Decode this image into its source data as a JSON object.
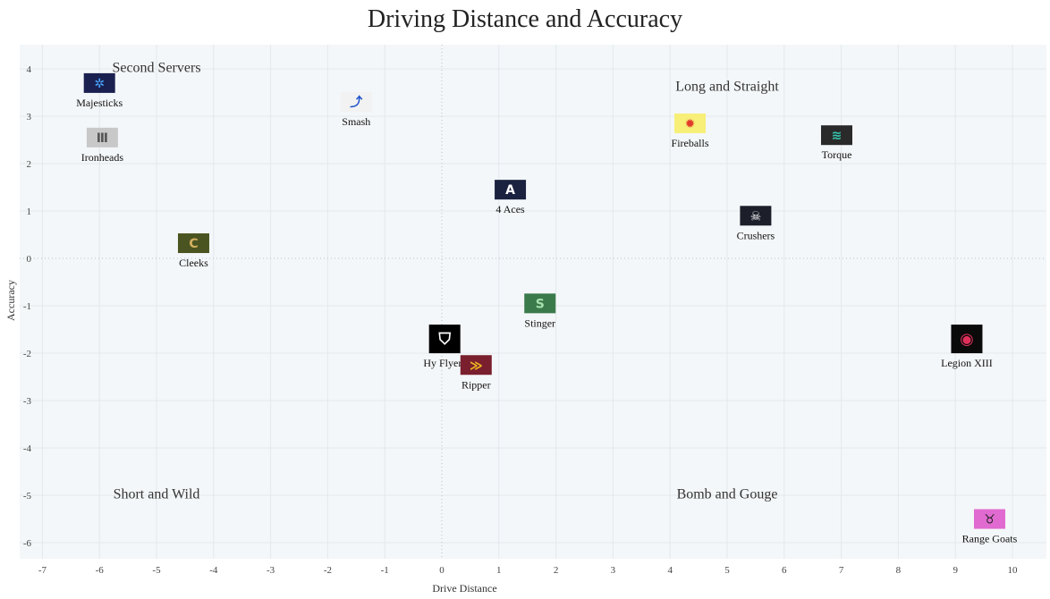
{
  "chart_data": {
    "type": "scatter",
    "title": "Driving Distance and Accuracy",
    "xlabel": "Drive Distance",
    "ylabel": "Accuracy",
    "xlim": [
      -7,
      10.6
    ],
    "ylim": [
      -6.3,
      4.3
    ],
    "xticks": [
      -7,
      -6,
      -5,
      -4,
      -3,
      -2,
      -1,
      0,
      1,
      2,
      3,
      4,
      5,
      6,
      7,
      8,
      9,
      10
    ],
    "yticks": [
      4,
      3,
      2,
      1,
      0,
      -1,
      -2,
      -3,
      -4,
      -5,
      -6
    ],
    "grid": true,
    "quadrant_labels": [
      {
        "text": "Second Servers",
        "x": -5.0,
        "y": 4.05
      },
      {
        "text": "Long and Straight",
        "x": 5.0,
        "y": 3.65
      },
      {
        "text": "Short and Wild",
        "x": -5.0,
        "y": -4.95
      },
      {
        "text": "Bomb and Gouge",
        "x": 5.0,
        "y": -4.95
      }
    ],
    "points": [
      {
        "name": "Majesticks",
        "x": -6.0,
        "y": 3.7,
        "color": "#1a2150",
        "icon": "compass-star-icon",
        "glyph": "✲",
        "glyph_color": "#4aa3ff"
      },
      {
        "name": "Ironheads",
        "x": -5.95,
        "y": 2.55,
        "color": "#c8c8c8",
        "icon": "ironheads-logo-icon",
        "glyph": "Ⅲ",
        "glyph_color": "#555555"
      },
      {
        "name": "Smash",
        "x": -1.5,
        "y": 3.3,
        "color": "#f2f2f2",
        "icon": "smash-logo-icon",
        "glyph": "⤴",
        "glyph_color": "#2255cc"
      },
      {
        "name": "Fireballs",
        "x": 4.35,
        "y": 2.85,
        "color": "#f7ef78",
        "icon": "fireball-icon",
        "glyph": "✹",
        "glyph_color": "#e23a2a"
      },
      {
        "name": "Torque",
        "x": 6.92,
        "y": 2.6,
        "color": "#2a2a2a",
        "icon": "torque-logo-icon",
        "glyph": "≋",
        "glyph_color": "#33c9b0"
      },
      {
        "name": "4 Aces",
        "x": 1.2,
        "y": 1.45,
        "color": "#1b2240",
        "icon": "aces-logo-icon",
        "glyph": "A",
        "glyph_color": "#ffffff"
      },
      {
        "name": "Crushers",
        "x": 5.5,
        "y": 0.9,
        "color": "#1c1f2a",
        "icon": "skull-icon",
        "glyph": "☠",
        "glyph_color": "#ffffff"
      },
      {
        "name": "Cleeks",
        "x": -4.35,
        "y": 0.32,
        "color": "#4a5420",
        "icon": "cleeks-logo-icon",
        "glyph": "C",
        "glyph_color": "#d4b060"
      },
      {
        "name": "Stinger",
        "x": 1.72,
        "y": -0.95,
        "color": "#3b7a4a",
        "icon": "stinger-logo-icon",
        "glyph": "S",
        "glyph_color": "#a8e0b0"
      },
      {
        "name": "Hy Flyers",
        "x": 0.05,
        "y": -1.7,
        "color": "#000000",
        "icon": "hy-flyers-logo-icon",
        "glyph": "⛉",
        "glyph_color": "#ffffff"
      },
      {
        "name": "Ripper",
        "x": 0.6,
        "y": -2.25,
        "color": "#7a1f2e",
        "icon": "ripper-logo-icon",
        "glyph": "≫",
        "glyph_color": "#f0c020"
      },
      {
        "name": "Legion XIII",
        "x": 9.2,
        "y": -1.7,
        "color": "#0a0a0a",
        "icon": "panther-icon",
        "glyph": "◉",
        "glyph_color": "#e0305a"
      },
      {
        "name": "Range Goats",
        "x": 9.6,
        "y": -5.5,
        "color": "#e06ad0",
        "icon": "goat-icon",
        "glyph": "♉",
        "glyph_color": "#222222"
      }
    ]
  }
}
